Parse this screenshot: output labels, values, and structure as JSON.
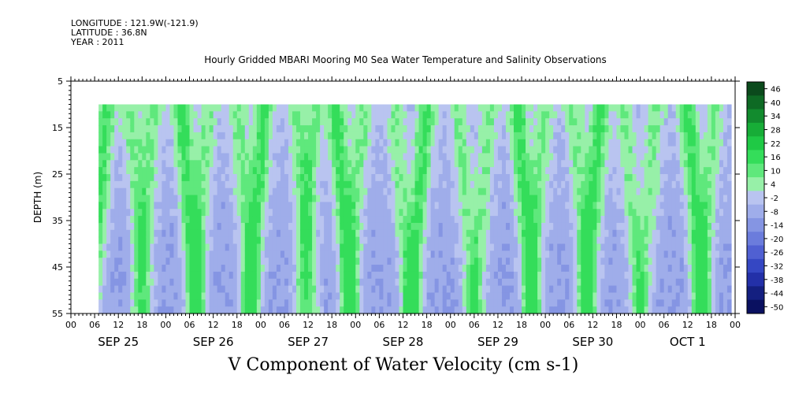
{
  "header": {
    "longitude": "LONGITUDE : 121.9W(-121.9)",
    "latitude": "LATITUDE : 36.8N",
    "year": "YEAR : 2011",
    "title": "Hourly Gridded MBARI Mooring M0 Sea Water Temperature and Salinity Observations"
  },
  "chart_data": {
    "type": "heatmap",
    "title": "Hourly Gridded MBARI Mooring M0 Sea Water Temperature and Salinity Observations",
    "xlabel": "V Component of Water Velocity (cm s-1)",
    "ylabel": "DEPTH (m)",
    "ylim": [
      55,
      5
    ],
    "y_ticks": [
      "5",
      "15",
      "25",
      "35",
      "45",
      "55"
    ],
    "x_hour_ticks": [
      "00",
      "06",
      "12",
      "18",
      "00",
      "06",
      "12",
      "18",
      "00",
      "06",
      "12",
      "18",
      "00",
      "06",
      "12",
      "18",
      "00",
      "06",
      "12",
      "18",
      "00",
      "06",
      "12",
      "18",
      "00",
      "06",
      "12",
      "18",
      "00"
    ],
    "x_day_labels": [
      "SEP 25",
      "SEP 26",
      "SEP 27",
      "SEP 28",
      "SEP 29",
      "SEP 30",
      "OCT  1"
    ],
    "data_start_hour": 7,
    "data_end_hour": 167,
    "depth_top": 10,
    "depth_bottom": 55,
    "colorbar": {
      "levels": [
        "46",
        "40",
        "34",
        "28",
        "22",
        "16",
        "10",
        "4",
        "-2",
        "-8",
        "-14",
        "-20",
        "-26",
        "-32",
        "-38",
        "-44",
        "-50"
      ],
      "colors_top_to_bottom": [
        "#0b4a1c",
        "#0e6a24",
        "#128b2e",
        "#17ad37",
        "#1fc945",
        "#34dd5a",
        "#5fe87c",
        "#97f0a8",
        "#b9c4f0",
        "#9fadea",
        "#8595e3",
        "#6b7cdc",
        "#5060d2",
        "#3547c3",
        "#2330a8",
        "#141f80",
        "#0a1060"
      ]
    },
    "grid": false
  }
}
